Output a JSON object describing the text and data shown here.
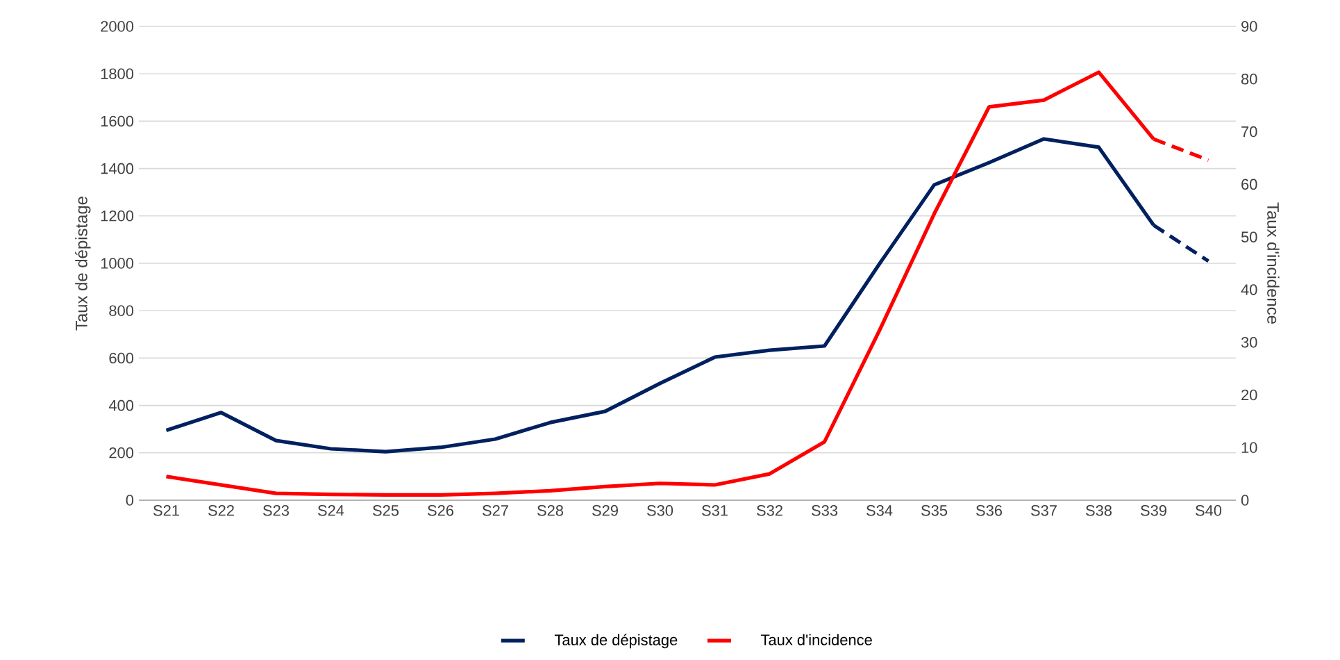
{
  "chart_data": {
    "type": "line",
    "categories": [
      "S21",
      "S22",
      "S23",
      "S24",
      "S25",
      "S26",
      "S27",
      "S28",
      "S29",
      "S30",
      "S31",
      "S32",
      "S33",
      "S34",
      "S35",
      "S36",
      "S37",
      "S38",
      "S39",
      "S40"
    ],
    "series": [
      {
        "name": "Taux de dépistage",
        "color": "#002060",
        "values": [
          295,
          370,
          252,
          217,
          205,
          223,
          258,
          328,
          375,
          493,
          604,
          633,
          651,
          997,
          1331,
          1425,
          1525,
          1490,
          1161,
          null
        ]
      },
      {
        "color": "#002060",
        "line_style": "dashed",
        "values": [
          null,
          null,
          null,
          null,
          null,
          null,
          null,
          null,
          null,
          null,
          null,
          null,
          null,
          null,
          null,
          null,
          null,
          null,
          1161,
          1009
        ]
      },
      {
        "name": "Taux d'incidence",
        "color": "#ff0000",
        "axis": "y2",
        "values": [
          4.5,
          2.9,
          1.3,
          1.1,
          1.0,
          1.0,
          1.3,
          1.8,
          2.6,
          3.2,
          2.9,
          5.0,
          11.1,
          32.2,
          54.4,
          74.7,
          76.0,
          81.3,
          68.6,
          null
        ]
      },
      {
        "color": "#ff0000",
        "axis": "y2",
        "line_style": "dashed",
        "values": [
          null,
          null,
          null,
          null,
          null,
          null,
          null,
          null,
          null,
          null,
          null,
          null,
          null,
          null,
          null,
          null,
          null,
          null,
          68.6,
          64.6
        ]
      }
    ],
    "ylabel": "Taux de dépistage",
    "y2label": "Taux d'incidence",
    "ylim": [
      0,
      2000
    ],
    "yticks": [
      0,
      200,
      400,
      600,
      800,
      1000,
      1200,
      1400,
      1600,
      1800,
      2000
    ],
    "y2lim": [
      0,
      90
    ],
    "y2ticks": [
      0,
      10,
      20,
      30,
      40,
      50,
      60,
      70,
      80,
      90
    ],
    "grid": "y",
    "legend": "bottom",
    "line_style": "solid",
    "marker": "none"
  }
}
